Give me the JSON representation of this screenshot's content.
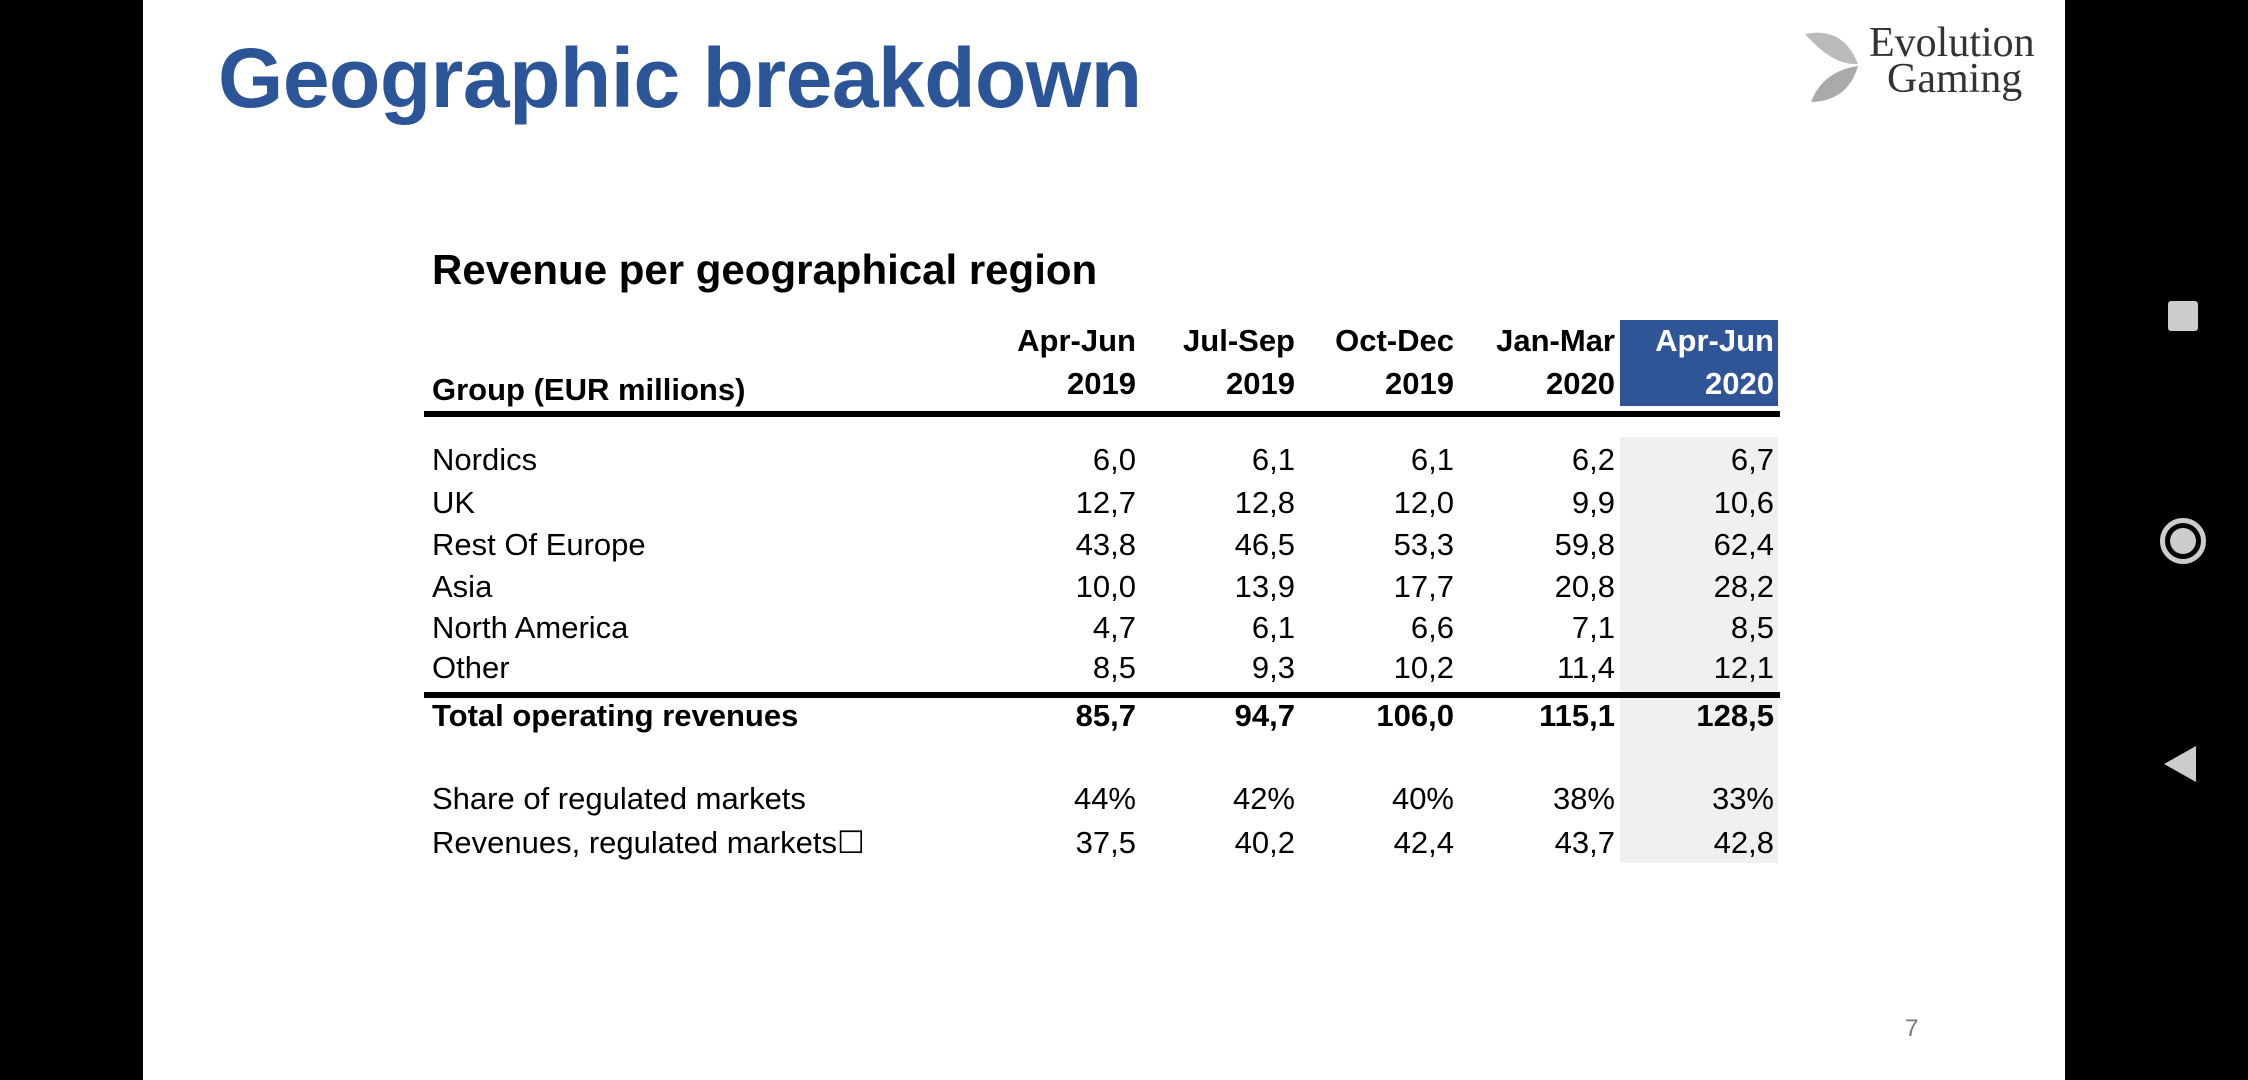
{
  "slide": {
    "title": "Geographic breakdown",
    "subtitle": "Revenue per geographical region",
    "page_number": "7",
    "logo": {
      "line1": "Evolution",
      "line2": "Gaming"
    }
  },
  "table": {
    "group_label": "Group (EUR millions)",
    "columns": [
      {
        "l1": "Apr-Jun",
        "l2": "2019"
      },
      {
        "l1": "Jul-Sep",
        "l2": "2019"
      },
      {
        "l1": "Oct-Dec",
        "l2": "2019"
      },
      {
        "l1": "Jan-Mar",
        "l2": "2020"
      },
      {
        "l1": "Apr-Jun",
        "l2": "2020"
      }
    ],
    "highlight_color": "#2F5597",
    "rows": [
      {
        "label": "Nordics",
        "values": [
          "6,0",
          "6,1",
          "6,1",
          "6,2",
          "6,7"
        ]
      },
      {
        "label": "UK",
        "values": [
          "12,7",
          "12,8",
          "12,0",
          "9,9",
          "10,6"
        ]
      },
      {
        "label": "Rest Of Europe",
        "values": [
          "43,8",
          "46,5",
          "53,3",
          "59,8",
          "62,4"
        ]
      },
      {
        "label": "Asia",
        "values": [
          "10,0",
          "13,9",
          "17,7",
          "20,8",
          "28,2"
        ]
      },
      {
        "label": "North America",
        "values": [
          "4,7",
          "6,1",
          "6,6",
          "7,1",
          "8,5"
        ]
      },
      {
        "label": "Other",
        "values": [
          "8,5",
          "9,3",
          "10,2",
          "11,4",
          "12,1"
        ]
      }
    ],
    "total": {
      "label": "Total operating revenues",
      "values": [
        "85,7",
        "94,7",
        "106,0",
        "115,1",
        "128,5"
      ]
    },
    "extra": [
      {
        "label": "Share of regulated markets",
        "values": [
          "44%",
          "42%",
          "40%",
          "38%",
          "33%"
        ]
      },
      {
        "label": "Revenues, regulated markets☐",
        "values": [
          "37,5",
          "40,2",
          "42,4",
          "43,7",
          "42,8"
        ]
      }
    ]
  },
  "nav": {
    "buttons": [
      "recent-apps",
      "home",
      "back"
    ]
  }
}
